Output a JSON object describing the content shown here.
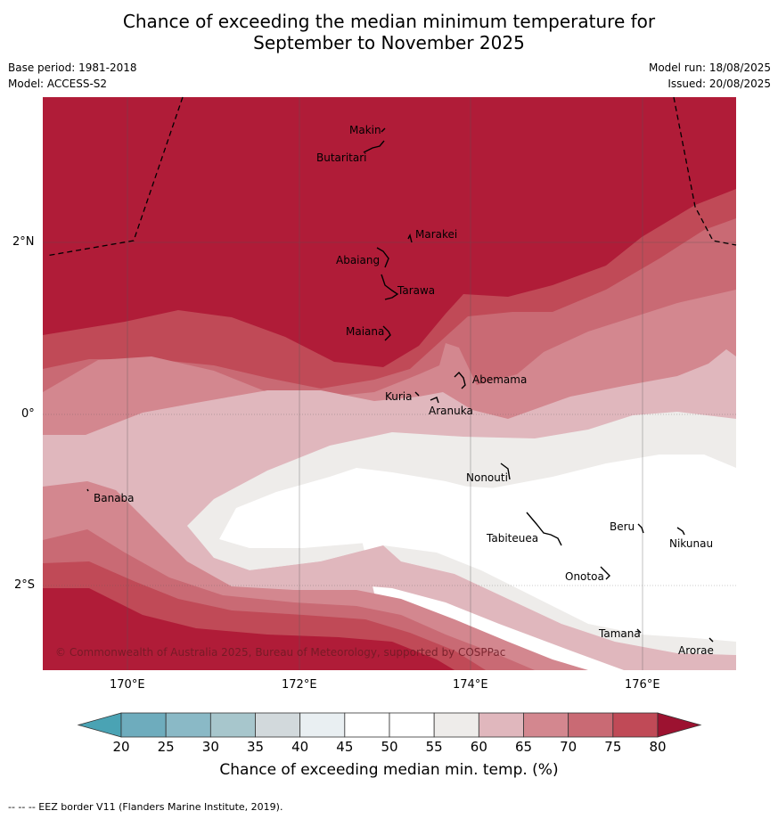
{
  "title_line1": "Chance of exceeding the median minimum temperature for",
  "title_line2": "September to November 2025",
  "base_period": "Base period: 1981-2018",
  "model": "Model: ACCESS-S2",
  "model_run": "Model run: 18/08/2025",
  "issued": "Issued: 20/08/2025",
  "copyright": "© Commonwealth of Australia 2025, Bureau of Meteorology, supported by COSPPac",
  "x_ticks": [
    "170°E",
    "172°E",
    "174°E",
    "176°E"
  ],
  "y_ticks": [
    "2°N",
    "0°",
    "2°S"
  ],
  "places": [
    "Makin",
    "Butaritari",
    "Marakei",
    "Abaiang",
    "Tarawa",
    "Maiana",
    "Abemama",
    "Kuria",
    "Aranuka",
    "Nonouti",
    "Banaba",
    "Tabiteuea",
    "Beru",
    "Nikunau",
    "Onotoa",
    "Tamana",
    "Arorae"
  ],
  "colorbar": {
    "title": "Chance of exceeding median min. temp. (%)",
    "levels": [
      "20",
      "25",
      "30",
      "35",
      "40",
      "45",
      "50",
      "55",
      "60",
      "65",
      "70",
      "75",
      "80"
    ],
    "colors": [
      "#66aabb",
      "#6eacbd",
      "#8ab9c6",
      "#a7c6cc",
      "#d2d9dc",
      "#e9eff2",
      "#ffffff",
      "#ffffff",
      "#eeecea",
      "#e0b7bd",
      "#d3878f",
      "#c96a74",
      "#c04a57",
      "#b01c38"
    ]
  },
  "footer": "--  --  -- EEZ border V11 (Flanders Marine Institute, 2019)."
}
